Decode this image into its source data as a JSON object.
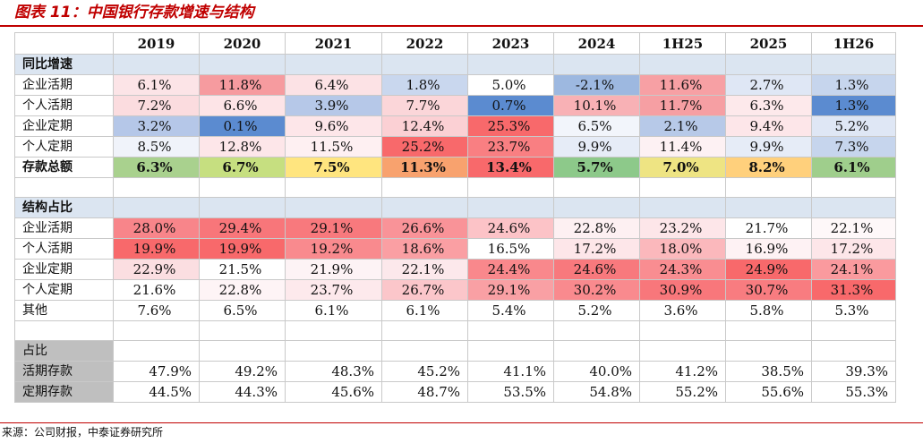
{
  "title": "图表 11：中国银行存款增速与结构",
  "source": "来源：公司财报，中泰证券研究所",
  "columns": [
    "2019",
    "2020",
    "2021",
    "2022",
    "2023",
    "2024",
    "1H25",
    "2025",
    "1H26"
  ],
  "growth_section": "同比增速",
  "growth_rows": [
    {
      "label": "企业活期",
      "values": [
        "6.1%",
        "11.8%",
        "6.4%",
        "1.8%",
        "5.0%",
        "-2.1%",
        "11.6%",
        "2.7%",
        "1.3%"
      ],
      "colors": [
        "#fce4e7",
        "#f69b9f",
        "#fce2e5",
        "#c9d7ee",
        "#ffffff",
        "#9db8e0",
        "#f7a0a4",
        "#dfe7f5",
        "#c6d5ed"
      ]
    },
    {
      "label": "个人活期",
      "values": [
        "7.2%",
        "6.6%",
        "3.9%",
        "7.7%",
        "0.7%",
        "10.1%",
        "11.7%",
        "6.3%",
        "1.3%"
      ],
      "colors": [
        "#fbdcdf",
        "#fde4e7",
        "#b6c8e8",
        "#fbd6d9",
        "#5b8bd0",
        "#f8b1b5",
        "#f69fa3",
        "#fde9eb",
        "#5b8bd0"
      ]
    },
    {
      "label": "企业定期",
      "values": [
        "3.2%",
        "0.1%",
        "9.6%",
        "12.4%",
        "25.3%",
        "6.5%",
        "2.1%",
        "9.4%",
        "5.2%"
      ],
      "colors": [
        "#b5c7e8",
        "#5b8bd0",
        "#fde6e9",
        "#fbd0d4",
        "#f8696b",
        "#f2f5fb",
        "#b7c9e8",
        "#fde6e9",
        "#dfe7f5"
      ]
    },
    {
      "label": "个人定期",
      "values": [
        "8.5%",
        "12.8%",
        "11.5%",
        "25.2%",
        "23.7%",
        "9.9%",
        "11.4%",
        "9.9%",
        "7.3%"
      ],
      "colors": [
        "#f0f3fa",
        "#fde6e9",
        "#fef0f2",
        "#f8696b",
        "#f97f82",
        "#e6ecf7",
        "#fdf1f3",
        "#e6ecf7",
        "#c6d5ed"
      ]
    },
    {
      "label": "存款总额",
      "values": [
        "6.3%",
        "6.7%",
        "7.5%",
        "11.3%",
        "13.4%",
        "5.7%",
        "7.0%",
        "8.2%",
        "6.1%"
      ],
      "colors": [
        "#a9d18e",
        "#c6df80",
        "#ffe57f",
        "#f8a26e",
        "#f8696b",
        "#8dc98a",
        "#eee483",
        "#ffd07c",
        "#9fce8c"
      ],
      "bold": true
    }
  ],
  "structure_section": "结构占比",
  "structure_rows": [
    {
      "label": "企业活期",
      "values": [
        "28.0%",
        "29.4%",
        "29.1%",
        "26.6%",
        "24.6%",
        "22.8%",
        "23.2%",
        "21.7%",
        "22.1%"
      ],
      "colors": [
        "#f8858a",
        "#f8767a",
        "#f8797d",
        "#f99398",
        "#fcc3c7",
        "#fdf0f2",
        "#fde6e9",
        "#ffffff",
        "#fef8f9"
      ]
    },
    {
      "label": "个人活期",
      "values": [
        "19.9%",
        "19.9%",
        "19.2%",
        "18.6%",
        "16.5%",
        "17.2%",
        "18.0%",
        "16.9%",
        "17.2%"
      ],
      "colors": [
        "#f8696b",
        "#f8696b",
        "#f98a8e",
        "#fa9fa3",
        "#ffffff",
        "#fde6e9",
        "#fbb8bc",
        "#fef2f4",
        "#fde6e9"
      ]
    },
    {
      "label": "企业定期",
      "values": [
        "22.9%",
        "21.5%",
        "21.9%",
        "22.1%",
        "24.4%",
        "24.6%",
        "24.3%",
        "24.9%",
        "24.1%"
      ],
      "colors": [
        "#fbdee1",
        "#ffffff",
        "#fdf3f5",
        "#fce8eb",
        "#f9888c",
        "#f8797d",
        "#f98d91",
        "#f8696b",
        "#fa9a9e"
      ]
    },
    {
      "label": "个人定期",
      "values": [
        "21.6%",
        "22.8%",
        "23.7%",
        "26.7%",
        "29.1%",
        "30.2%",
        "30.9%",
        "30.7%",
        "31.3%"
      ],
      "colors": [
        "#ffffff",
        "#fef4f6",
        "#fde9ec",
        "#fbc6ca",
        "#f9a0a4",
        "#f98a8e",
        "#f8777b",
        "#f87c80",
        "#f8696b"
      ]
    },
    {
      "label": "其他",
      "values": [
        "7.6%",
        "6.5%",
        "6.1%",
        "6.1%",
        "5.4%",
        "5.2%",
        "3.6%",
        "5.8%",
        "5.3%"
      ],
      "colors": [
        "#ffffff",
        "#ffffff",
        "#ffffff",
        "#ffffff",
        "#ffffff",
        "#ffffff",
        "#ffffff",
        "#ffffff",
        "#ffffff"
      ]
    }
  ],
  "share_section": "占比",
  "share_rows": [
    {
      "label": "活期存款",
      "values": [
        "47.9%",
        "49.2%",
        "48.3%",
        "45.2%",
        "41.1%",
        "40.0%",
        "41.2%",
        "38.5%",
        "39.3%"
      ]
    },
    {
      "label": "定期存款",
      "values": [
        "44.5%",
        "44.3%",
        "45.6%",
        "48.7%",
        "53.5%",
        "54.8%",
        "55.2%",
        "55.6%",
        "55.3%"
      ]
    }
  ]
}
